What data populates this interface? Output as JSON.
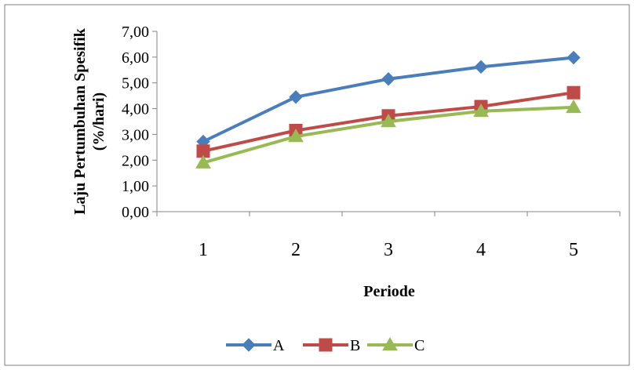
{
  "chart_data": {
    "type": "line",
    "title": "",
    "xlabel": "Periode",
    "ylabel": "Laju Pertumbuhan Spesifik (%/hari)",
    "ylabel_lines": [
      "Laju Pertumbuhan Spesifik",
      "(%/hari)"
    ],
    "categories": [
      "1",
      "2",
      "3",
      "4",
      "5"
    ],
    "ylim": [
      0,
      7
    ],
    "yticks": [
      "0,00",
      "1,00",
      "2,00",
      "3,00",
      "4,00",
      "5,00",
      "6,00",
      "7,00"
    ],
    "grid": false,
    "legend_position": "bottom",
    "series": [
      {
        "name": "A",
        "color": "#4a7ebb",
        "marker": "diamond",
        "values": [
          2.72,
          4.45,
          5.15,
          5.62,
          5.98
        ]
      },
      {
        "name": "B",
        "color": "#be4b48",
        "marker": "square",
        "values": [
          2.35,
          3.15,
          3.72,
          4.08,
          4.62
        ]
      },
      {
        "name": "C",
        "color": "#98b954",
        "marker": "triangle",
        "values": [
          1.9,
          2.92,
          3.5,
          3.9,
          4.05
        ]
      }
    ]
  }
}
